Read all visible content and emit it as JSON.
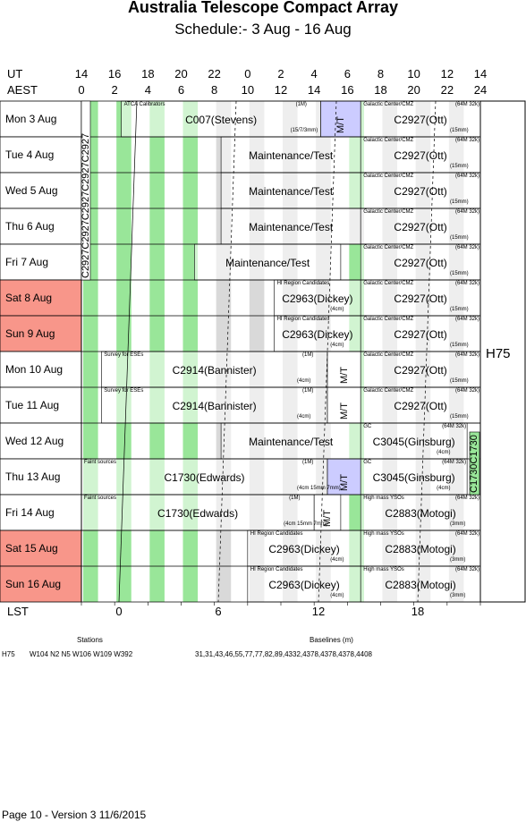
{
  "title": "Australia Telescope Compact Array",
  "subtitle": "Schedule:- 3  Aug - 16 Aug",
  "header": {
    "ut_label": "UT",
    "aest_label": "AEST",
    "lst_label": "LST",
    "ut_ticks": [
      "14",
      "16",
      "18",
      "20",
      "22",
      "0",
      "2",
      "4",
      "6",
      "8",
      "10",
      "12",
      "14"
    ],
    "aest_ticks": [
      "0",
      "2",
      "4",
      "6",
      "8",
      "10",
      "12",
      "14",
      "16",
      "18",
      "20",
      "22",
      "24"
    ],
    "lst_ticks": [
      "0",
      "6",
      "12",
      "18"
    ]
  },
  "config_label": "H75",
  "days": [
    {
      "label": "Mon   3  Aug",
      "weekend": false
    },
    {
      "label": "Tue   4  Aug",
      "weekend": false
    },
    {
      "label": "Wed   5  Aug",
      "weekend": false
    },
    {
      "label": "Thu   6  Aug",
      "weekend": false
    },
    {
      "label": "Fri    7  Aug",
      "weekend": false
    },
    {
      "label": "Sat   8  Aug",
      "weekend": true
    },
    {
      "label": "Sun   9  Aug",
      "weekend": true
    },
    {
      "label": "Mon  10 Aug",
      "weekend": false
    },
    {
      "label": "Tue   11 Aug",
      "weekend": false
    },
    {
      "label": "Wed  12 Aug",
      "weekend": false
    },
    {
      "label": "Thu  13 Aug",
      "weekend": false
    },
    {
      "label": "Fri   14 Aug",
      "weekend": false
    },
    {
      "label": "Sat   15 Aug",
      "weekend": true
    },
    {
      "label": "Sun   16 Aug",
      "weekend": true
    }
  ],
  "projects": [
    {
      "row": 0,
      "name": "C007(Stevens)",
      "start": 1.2,
      "end": 7.2,
      "tl": "ATCA Calibrators",
      "tr": "(1M)",
      "br": "(15/7/3mm)"
    },
    {
      "row": 0,
      "name": "M/T",
      "start": 7.2,
      "end": 8.4,
      "vertical": true,
      "fill": "#ccccff"
    },
    {
      "row": 0,
      "name": "C2927(Ott)",
      "start": 8.4,
      "end": 12.0,
      "tl": "Galactic Center/CMZ",
      "tr": "(64M 32k)",
      "br": "(15mm)"
    },
    {
      "row": 1,
      "name": "Maintenance/Test",
      "start": 4.2,
      "end": 8.4,
      "tl": "",
      "tr": "",
      "br": ""
    },
    {
      "row": 1,
      "name": "C2927(Ott)",
      "start": 8.4,
      "end": 12.0,
      "tl": "Galactic Center/CMZ",
      "tr": "(64M 32k)",
      "br": "(15mm)"
    },
    {
      "row": 2,
      "name": "Maintenance/Test",
      "start": 4.2,
      "end": 8.4,
      "tl": "",
      "tr": "",
      "br": ""
    },
    {
      "row": 2,
      "name": "C2927(Ott)",
      "start": 8.4,
      "end": 12.0,
      "tl": "Galactic Center/CMZ",
      "tr": "(64M 32k)",
      "br": "(15mm)"
    },
    {
      "row": 3,
      "name": "Maintenance/Test",
      "start": 4.2,
      "end": 8.4,
      "tl": "",
      "tr": "",
      "br": ""
    },
    {
      "row": 3,
      "name": "C2927(Ott)",
      "start": 8.4,
      "end": 12.0,
      "tl": "Galactic Center/CMZ",
      "tr": "(64M 32k)",
      "br": "(15mm)"
    },
    {
      "row": 4,
      "name": "Maintenance/Test",
      "start": 3.4,
      "end": 7.8,
      "tl": "",
      "tr": "",
      "br": ""
    },
    {
      "row": 4,
      "name": "C2927(Ott)",
      "start": 8.4,
      "end": 12.0,
      "tl": "Galactic Center/CMZ",
      "tr": "(64M 32k)",
      "br": "(15mm)"
    },
    {
      "row": 5,
      "name": "C2963(Dickey)",
      "start": 5.8,
      "end": 8.4,
      "tl": "HI Region Candidates",
      "tr": "",
      "br": "(4cm)"
    },
    {
      "row": 5,
      "name": "C2927(Ott)",
      "start": 8.4,
      "end": 12.0,
      "tl": "Galactic Center/CMZ",
      "tr": "(64M 32k)",
      "br": "(15mm)"
    },
    {
      "row": 6,
      "name": "C2963(Dickey)",
      "start": 5.8,
      "end": 8.4,
      "tl": "HI Region Candidates",
      "tr": "",
      "br": "(4cm)"
    },
    {
      "row": 6,
      "name": "C2927(Ott)",
      "start": 8.4,
      "end": 12.0,
      "tl": "Galactic Center/CMZ",
      "tr": "(64M 32k)",
      "br": "(15mm)"
    },
    {
      "row": 7,
      "name": "C2914(Bannister)",
      "start": 0.6,
      "end": 7.4,
      "tl": "Survey for ESEs",
      "tr": "(1M)",
      "br": "(4cm)"
    },
    {
      "row": 7,
      "name": "M/T",
      "start": 7.4,
      "end": 8.4,
      "vertical": true,
      "fill": "#ffffff"
    },
    {
      "row": 7,
      "name": "C2927(Ott)",
      "start": 8.4,
      "end": 12.0,
      "tl": "Galactic Center/CMZ",
      "tr": "(64M 32k)",
      "br": "(15mm)"
    },
    {
      "row": 8,
      "name": "C2914(Bannister)",
      "start": 0.6,
      "end": 7.4,
      "tl": "Survey for ESEs",
      "tr": "(1M)",
      "br": "(4cm)"
    },
    {
      "row": 8,
      "name": "M/T",
      "start": 7.4,
      "end": 8.4,
      "vertical": true,
      "fill": "#ffffff"
    },
    {
      "row": 8,
      "name": "C2927(Ott)",
      "start": 8.4,
      "end": 12.0,
      "tl": "Galactic Center/CMZ",
      "tr": "(64M 32k)",
      "br": "(15mm)"
    },
    {
      "row": 9,
      "name": "Maintenance/Test",
      "start": 4.2,
      "end": 8.4,
      "tl": "",
      "tr": "",
      "br": ""
    },
    {
      "row": 9,
      "name": "C3045(Ginsburg)",
      "start": 8.4,
      "end": 11.6,
      "tl": "GC",
      "tr": "(64M 32k)",
      "br": "(4cm)"
    },
    {
      "row": 10,
      "name": "C1730(Edwards)",
      "start": 0,
      "end": 7.4,
      "tl": "Faint sources",
      "tr": "(1M)",
      "br": "(4cm 15mm 7mm)"
    },
    {
      "row": 10,
      "name": "M/T",
      "start": 7.4,
      "end": 8.4,
      "vertical": true,
      "fill": "#ccccff"
    },
    {
      "row": 10,
      "name": "C3045(Ginsburg)",
      "start": 8.4,
      "end": 11.6,
      "tl": "GC",
      "tr": "(64M 32k)",
      "br": "(4cm)"
    },
    {
      "row": 11,
      "name": "C1730(Edwards)",
      "start": 0,
      "end": 7.0,
      "tl": "Faint sources",
      "tr": "(1M)",
      "br": "(4cm 15mm 7mm)"
    },
    {
      "row": 11,
      "name": "M/T",
      "start": 7.0,
      "end": 7.8,
      "vertical": true,
      "fill": "#ffffff"
    },
    {
      "row": 11,
      "name": "C2883(Motogi)",
      "start": 8.4,
      "end": 12.0,
      "tl": "High mass YSOs",
      "tr": "(64M 32k)",
      "br": "(3mm)"
    },
    {
      "row": 12,
      "name": "C2963(Dickey)",
      "start": 5.0,
      "end": 8.4,
      "tl": "HI Region Candidates",
      "tr": "",
      "br": "(4cm)"
    },
    {
      "row": 12,
      "name": "C2883(Motogi)",
      "start": 8.4,
      "end": 12.0,
      "tl": "High mass YSOs",
      "tr": "(64M 32k)",
      "br": "(3mm)"
    },
    {
      "row": 13,
      "name": "C2963(Dickey)",
      "start": 5.0,
      "end": 8.4,
      "tl": "HI Region Candidates",
      "tr": "",
      "br": "(4cm)"
    },
    {
      "row": 13,
      "name": "C2883(Motogi)",
      "start": 8.4,
      "end": 12.0,
      "tl": "High mass YSOs",
      "tr": "(64M 32k)",
      "br": "(3mm)"
    }
  ],
  "left_strip_label": "C2927C2927C2927C2927C2927",
  "right_strip_label": "C1730C1730",
  "footer": {
    "stations_heading": "Stations",
    "baselines_heading": "Baselines (m)",
    "config": "H75",
    "stations": "W104  N2  N5  W106  W109  W392",
    "baselines": "31,31,43,46,55,77,77,82,89,4332,4378,4378,4378,4408",
    "page": "Page 10 - Version 3  11/6/2015"
  }
}
